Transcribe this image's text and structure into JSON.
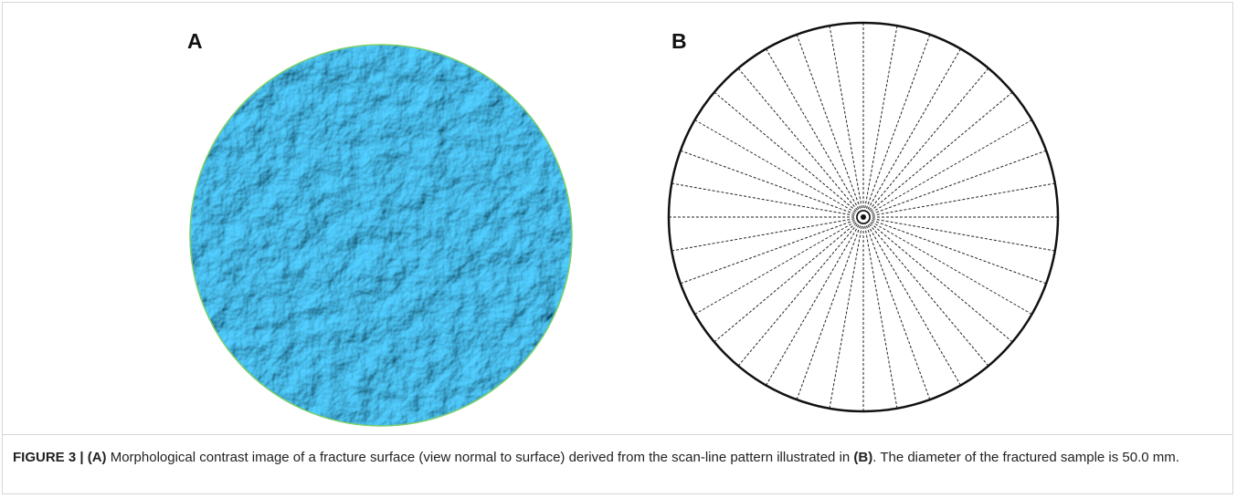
{
  "panels": {
    "a": {
      "label": "A"
    },
    "b": {
      "label": "B"
    }
  },
  "caption": {
    "label": "FIGURE 3 | (A)",
    "text1": " Morphological contrast image of a fracture surface (view normal to surface) derived from the scan-line pattern illustrated in ",
    "ref": "(B)",
    "text2": ". The diameter of the fractured sample is 50.0 mm."
  }
}
